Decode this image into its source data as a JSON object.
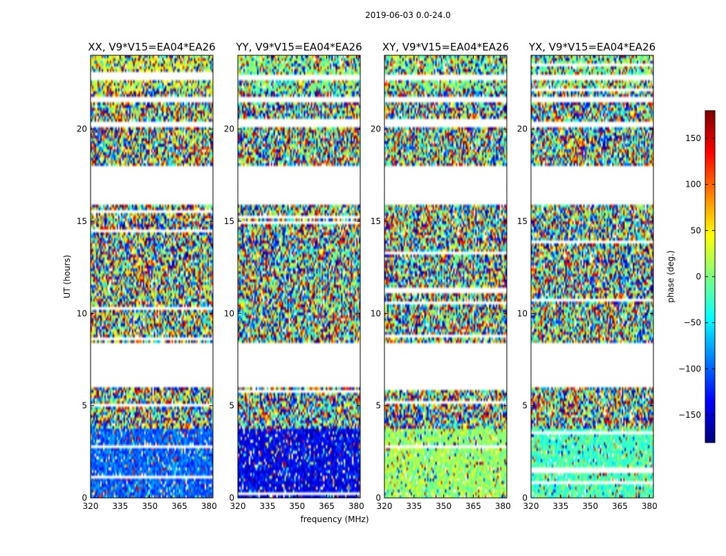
{
  "chart_data": {
    "type": "heatmap",
    "suptitle": "2019-06-03 0.0-24.0",
    "xlabel": "frequency (MHz)",
    "ylabel": "UT (hours)",
    "xlim": [
      320,
      382
    ],
    "ylim": [
      0,
      24
    ],
    "xticks": [
      "320",
      "335",
      "350",
      "365",
      "380"
    ],
    "xtick_values": [
      320,
      335,
      350,
      365,
      380
    ],
    "yticks": [
      "0",
      "5",
      "10",
      "15",
      "20"
    ],
    "ytick_values": [
      0,
      5,
      10,
      15,
      20
    ],
    "colorbar": {
      "label": "phase (deg.)",
      "range": [
        -180,
        180
      ],
      "ticks": [
        "150",
        "100",
        "50",
        "0",
        "−50",
        "−100",
        "−150"
      ],
      "tick_values": [
        150,
        100,
        50,
        0,
        -50,
        -100,
        -150
      ],
      "colormap": [
        "#00007f",
        "#0000ff",
        "#007fff",
        "#00ffff",
        "#7fff7f",
        "#ffff00",
        "#ff7f00",
        "#ff0000",
        "#7f0000"
      ]
    },
    "data_gaps_hours": [
      [
        6.0,
        8.4
      ],
      [
        15.9,
        18.0
      ],
      [
        22.7,
        22.9
      ],
      [
        21.5,
        21.8
      ],
      [
        20.1,
        20.4
      ]
    ],
    "panels": [
      {
        "title": "XX, V9*V15=EA04*EA26",
        "low_ut_mean_phase_deg": -100,
        "high_ut_mean_phase_deg": 30
      },
      {
        "title": "YY, V9*V15=EA04*EA26",
        "low_ut_mean_phase_deg": -140,
        "high_ut_mean_phase_deg": 0
      },
      {
        "title": "XY, V9*V15=EA04*EA26",
        "low_ut_mean_phase_deg": 10,
        "high_ut_mean_phase_deg": 0
      },
      {
        "title": "YX, V9*V15=EA04*EA26",
        "low_ut_mean_phase_deg": -20,
        "high_ut_mean_phase_deg": 0
      }
    ]
  }
}
